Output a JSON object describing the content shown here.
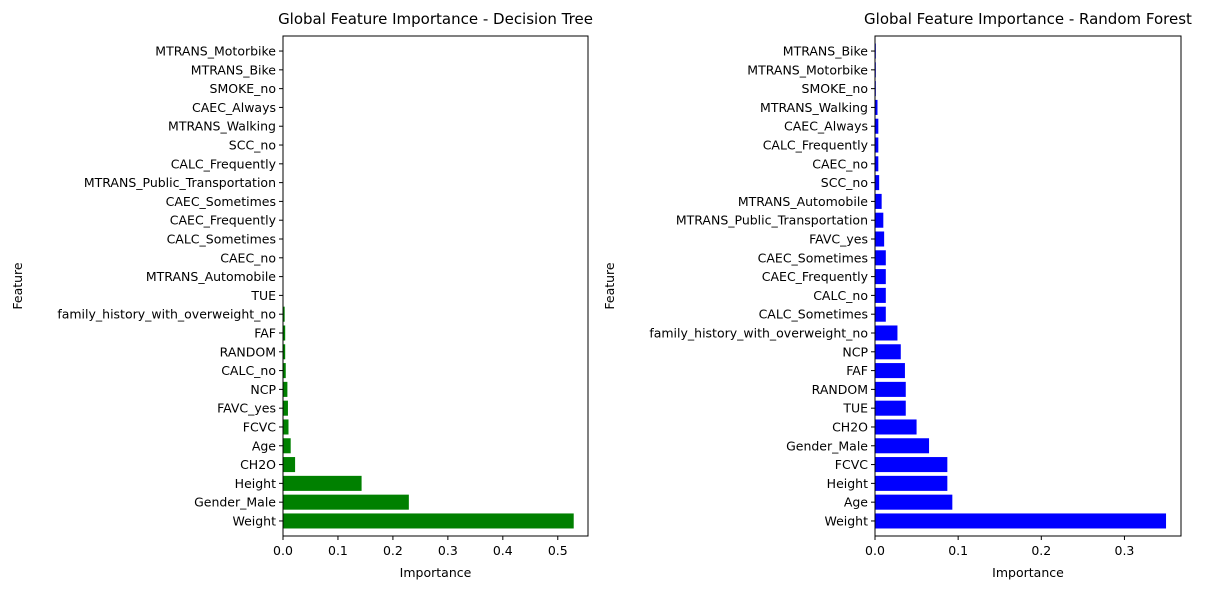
{
  "chart_data": [
    {
      "type": "bar",
      "orientation": "horizontal",
      "title": "Global Feature Importance - Decision Tree",
      "xlabel": "Importance",
      "ylabel": "Feature",
      "xlim": [
        0,
        0.555
      ],
      "xticks": [
        0.0,
        0.1,
        0.2,
        0.3,
        0.4,
        0.5
      ],
      "xtick_labels": [
        "0.0",
        "0.1",
        "0.2",
        "0.3",
        "0.4",
        "0.5"
      ],
      "color": "#008000",
      "grid": false,
      "categories": [
        "Weight",
        "Gender_Male",
        "Height",
        "CH2O",
        "Age",
        "FCVC",
        "FAVC_yes",
        "NCP",
        "CALC_no",
        "RANDOM",
        "FAF",
        "family_history_with_overweight_no",
        "TUE",
        "MTRANS_Automobile",
        "CAEC_no",
        "CALC_Sometimes",
        "CAEC_Frequently",
        "CAEC_Sometimes",
        "MTRANS_Public_Transportation",
        "CALC_Frequently",
        "SCC_no",
        "MTRANS_Walking",
        "CAEC_Always",
        "SMOKE_no",
        "MTRANS_Bike",
        "MTRANS_Motorbike"
      ],
      "values": [
        0.529,
        0.229,
        0.143,
        0.022,
        0.014,
        0.01,
        0.009,
        0.008,
        0.005,
        0.004,
        0.004,
        0.003,
        0.0,
        0.0,
        0.0,
        0.0,
        0.0,
        0.0,
        0.0,
        0.0,
        0.0,
        0.0,
        0.0,
        0.0,
        0.0,
        0.0
      ]
    },
    {
      "type": "bar",
      "orientation": "horizontal",
      "title": "Global Feature Importance - Random Forest",
      "xlabel": "Importance",
      "ylabel": "Feature",
      "xlim": [
        0,
        0.368
      ],
      "xticks": [
        0.0,
        0.1,
        0.2,
        0.3
      ],
      "xtick_labels": [
        "0.0",
        "0.1",
        "0.2",
        "0.3"
      ],
      "color": "#0000ff",
      "grid": false,
      "categories": [
        "Weight",
        "Age",
        "Height",
        "FCVC",
        "Gender_Male",
        "CH2O",
        "TUE",
        "RANDOM",
        "FAF",
        "NCP",
        "family_history_with_overweight_no",
        "CALC_Sometimes",
        "CALC_no",
        "CAEC_Frequently",
        "CAEC_Sometimes",
        "FAVC_yes",
        "MTRANS_Public_Transportation",
        "MTRANS_Automobile",
        "SCC_no",
        "CAEC_no",
        "CALC_Frequently",
        "CAEC_Always",
        "MTRANS_Walking",
        "SMOKE_no",
        "MTRANS_Motorbike",
        "MTRANS_Bike"
      ],
      "values": [
        0.35,
        0.093,
        0.087,
        0.087,
        0.065,
        0.05,
        0.037,
        0.037,
        0.036,
        0.031,
        0.027,
        0.013,
        0.013,
        0.013,
        0.013,
        0.011,
        0.01,
        0.008,
        0.005,
        0.004,
        0.004,
        0.004,
        0.003,
        0.001,
        0.001,
        0.001
      ]
    }
  ]
}
